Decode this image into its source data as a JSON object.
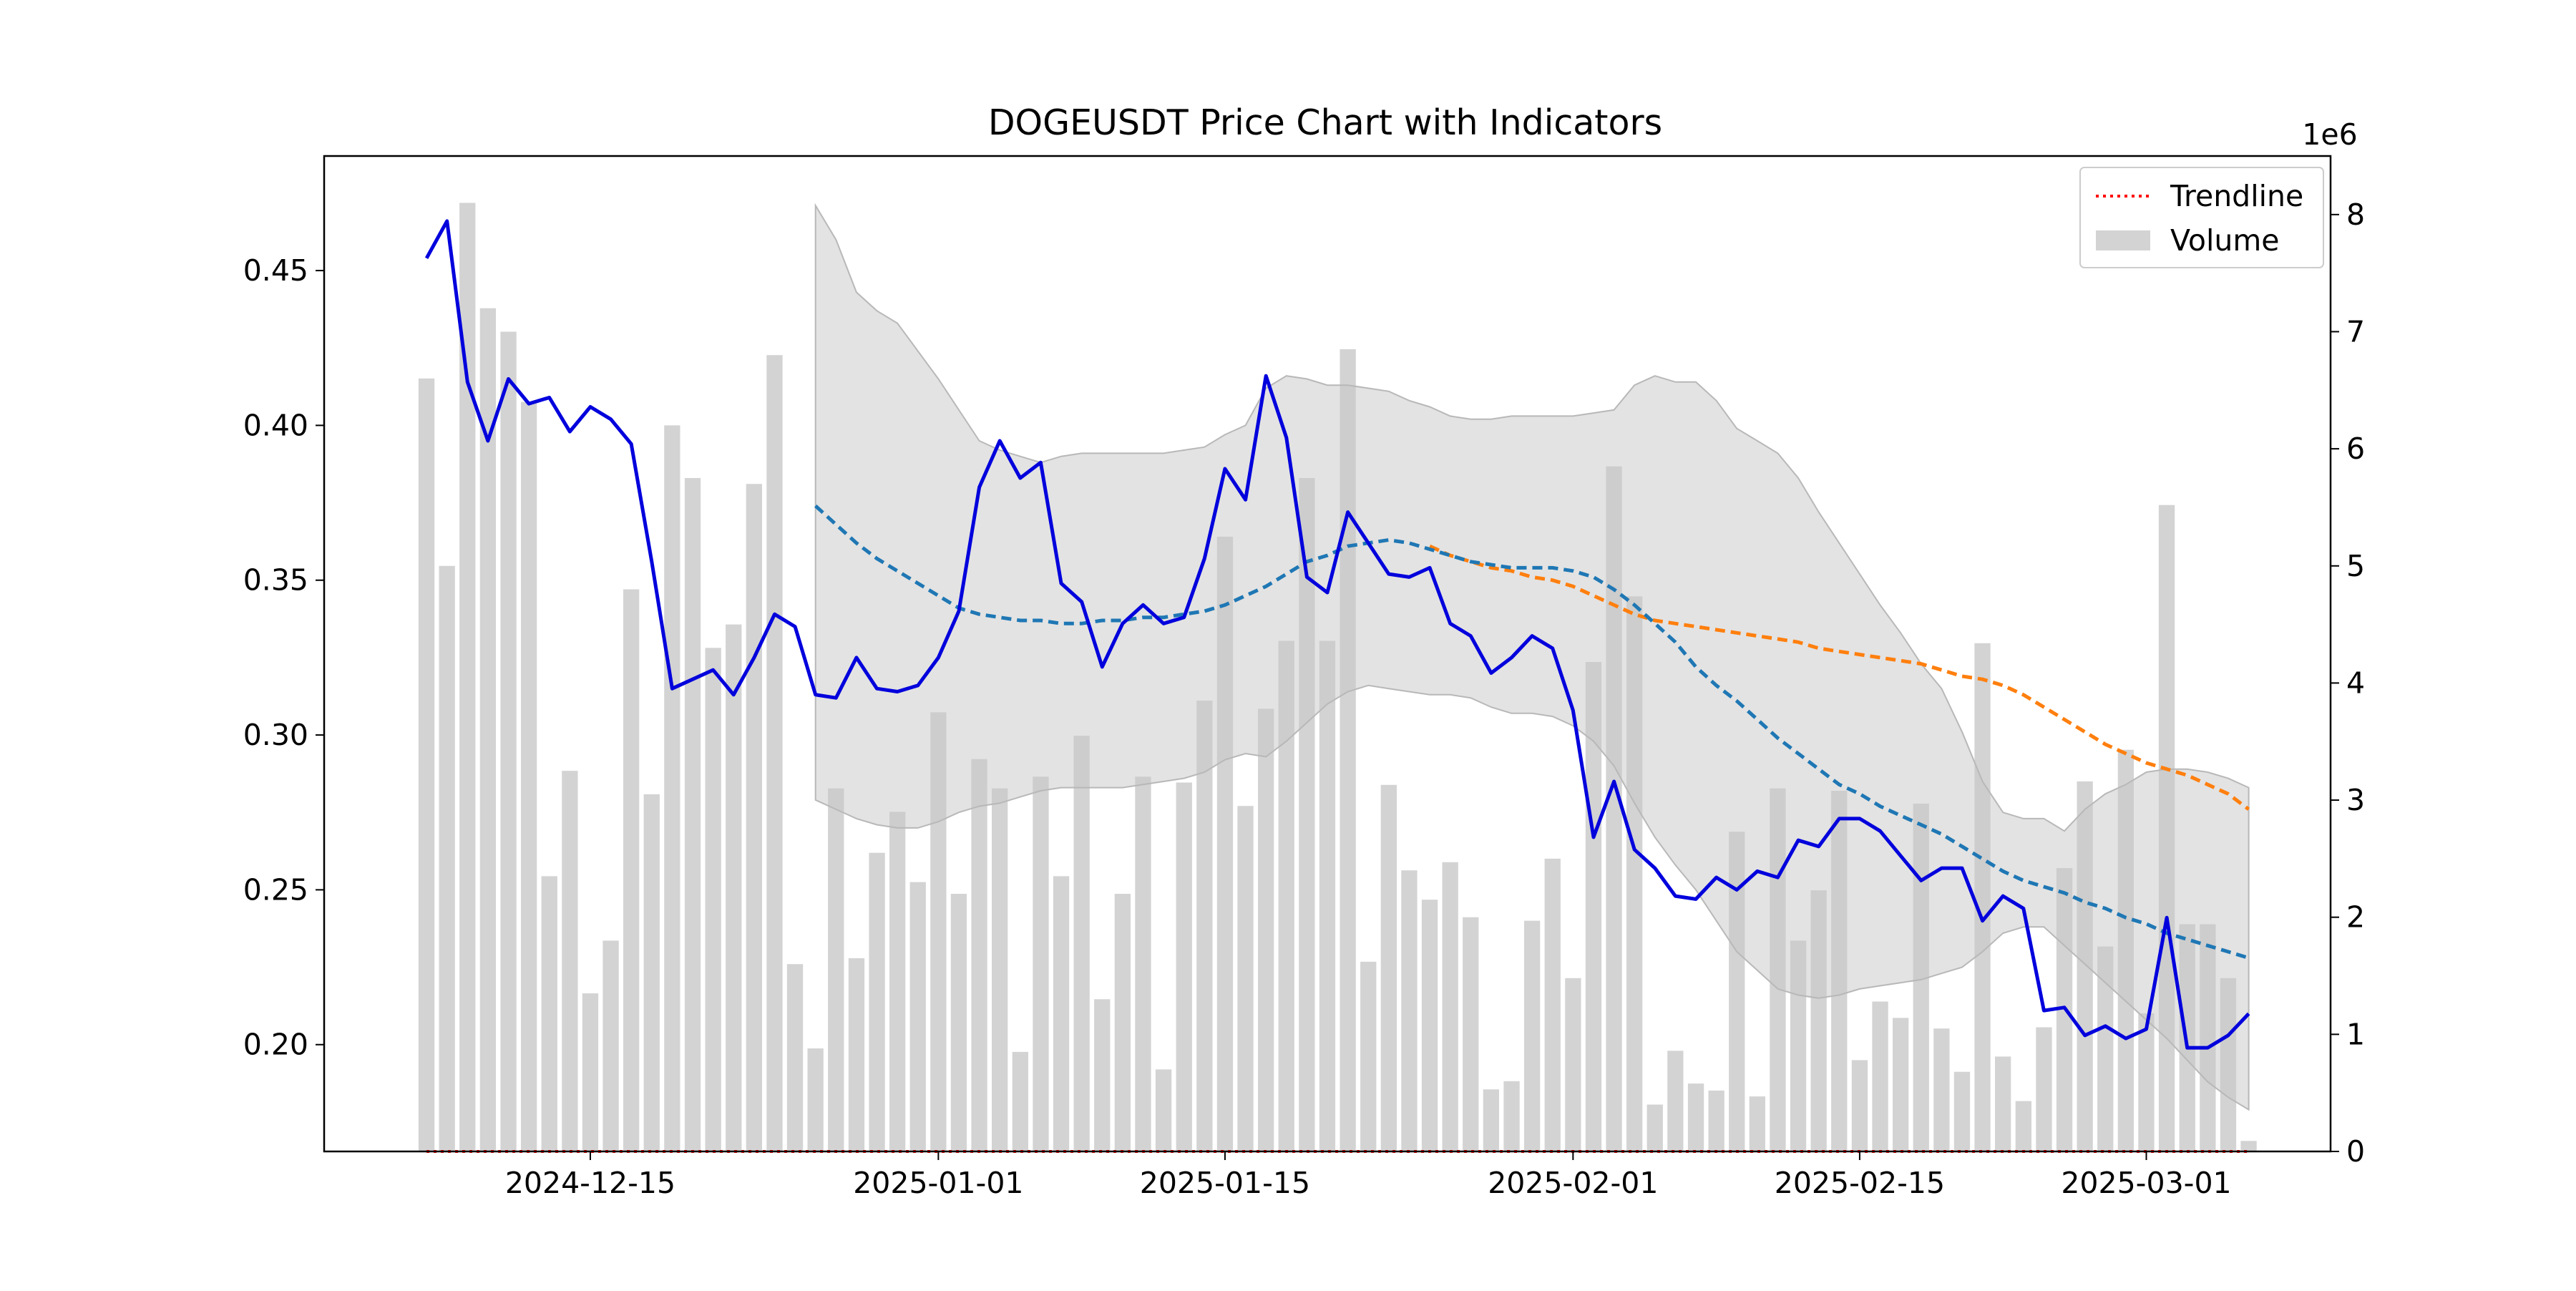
{
  "chart_data": {
    "type": "line",
    "title": "DOGEUSDT Price Chart with Indicators",
    "x_tick_labels": [
      "2024-12-15",
      "2025-01-01",
      "2025-01-15",
      "2025-02-01",
      "2025-02-15",
      "2025-03-01"
    ],
    "xlim": [
      "2024-12-02",
      "2025-03-10"
    ],
    "x_start": "2024-12-07",
    "left_axis": {
      "ylim": [
        0.1655,
        0.487
      ],
      "ticks": [
        "0.20",
        "0.25",
        "0.30",
        "0.35",
        "0.40",
        "0.45"
      ]
    },
    "right_axis": {
      "ylim": [
        0,
        8.5
      ],
      "ticks": [
        "0",
        "1",
        "2",
        "3",
        "4",
        "5",
        "6",
        "7",
        "8"
      ],
      "scale_label": "1e6"
    },
    "legend": {
      "placement": "top-right",
      "entries": [
        {
          "label": "Trendline",
          "style": "dotted",
          "color": "#ff0000"
        },
        {
          "label": "Volume",
          "style": "patch",
          "color": "#d3d3d3"
        }
      ]
    },
    "colors": {
      "price": "#0000dd",
      "ma_short": "#1f77b4",
      "ma_long": "#ff7f0e",
      "band": "#c8c8c8",
      "volume": "#d3d3d3",
      "trendline": "#ff0000"
    },
    "series": [
      {
        "key": "close_price",
        "axis": "left",
        "values": [
          0.454,
          0.466,
          0.414,
          0.395,
          0.415,
          0.407,
          0.409,
          0.398,
          0.406,
          0.402,
          0.394,
          0.356,
          0.315,
          0.318,
          0.321,
          0.313,
          0.325,
          0.339,
          0.335,
          0.313,
          0.312,
          0.325,
          0.315,
          0.314,
          0.316,
          0.325,
          0.34,
          0.38,
          0.395,
          0.383,
          0.388,
          0.349,
          0.343,
          0.322,
          0.336,
          0.342,
          0.336,
          0.338,
          0.357,
          0.386,
          0.376,
          0.416,
          0.396,
          0.351,
          0.346,
          0.372,
          0.362,
          0.352,
          0.351,
          0.354,
          0.336,
          0.332,
          0.32,
          0.325,
          0.332,
          0.328,
          0.308,
          0.267,
          0.285,
          0.263,
          0.257,
          0.248,
          0.247,
          0.254,
          0.25,
          0.256,
          0.254,
          0.266,
          0.264,
          0.273,
          0.273,
          0.269,
          0.261,
          0.253,
          0.257,
          0.257,
          0.24,
          0.248,
          0.244,
          0.211,
          0.212,
          0.203,
          0.206,
          0.202,
          0.205,
          0.241,
          0.199,
          0.199,
          0.203,
          0.21
        ]
      },
      {
        "key": "ma_short",
        "axis": "left",
        "style": "dashed",
        "start_index": 19,
        "values": [
          0.374,
          0.368,
          0.362,
          0.357,
          0.353,
          0.349,
          0.345,
          0.341,
          0.339,
          0.338,
          0.337,
          0.337,
          0.336,
          0.336,
          0.337,
          0.337,
          0.338,
          0.338,
          0.339,
          0.34,
          0.342,
          0.345,
          0.348,
          0.352,
          0.356,
          0.358,
          0.361,
          0.362,
          0.363,
          0.362,
          0.36,
          0.358,
          0.356,
          0.355,
          0.354,
          0.354,
          0.354,
          0.353,
          0.351,
          0.347,
          0.342,
          0.336,
          0.33,
          0.322,
          0.316,
          0.311,
          0.305,
          0.299,
          0.294,
          0.289,
          0.284,
          0.281,
          0.277,
          0.274,
          0.271,
          0.268,
          0.264,
          0.26,
          0.256,
          0.253,
          0.251,
          0.249,
          0.246,
          0.244,
          0.241,
          0.239,
          0.236,
          0.234,
          0.232,
          0.23,
          0.228
        ]
      },
      {
        "key": "ma_long",
        "axis": "left",
        "style": "dashed",
        "start_index": 49,
        "values": [
          0.361,
          0.358,
          0.356,
          0.354,
          0.353,
          0.351,
          0.35,
          0.348,
          0.345,
          0.342,
          0.339,
          0.337,
          0.336,
          0.335,
          0.334,
          0.333,
          0.332,
          0.331,
          0.33,
          0.328,
          0.327,
          0.326,
          0.325,
          0.324,
          0.323,
          0.321,
          0.319,
          0.318,
          0.316,
          0.313,
          0.309,
          0.305,
          0.301,
          0.297,
          0.294,
          0.291,
          0.289,
          0.287,
          0.284,
          0.281,
          0.276
        ]
      },
      {
        "key": "band_upper",
        "axis": "left",
        "start_index": 19,
        "values": [
          0.471,
          0.46,
          0.443,
          0.437,
          0.433,
          0.424,
          0.415,
          0.405,
          0.395,
          0.392,
          0.39,
          0.388,
          0.39,
          0.391,
          0.391,
          0.391,
          0.391,
          0.391,
          0.392,
          0.393,
          0.397,
          0.4,
          0.412,
          0.416,
          0.415,
          0.413,
          0.413,
          0.412,
          0.411,
          0.408,
          0.406,
          0.403,
          0.402,
          0.402,
          0.403,
          0.403,
          0.403,
          0.403,
          0.404,
          0.405,
          0.413,
          0.416,
          0.414,
          0.414,
          0.408,
          0.399,
          0.395,
          0.391,
          0.383,
          0.372,
          0.362,
          0.352,
          0.342,
          0.333,
          0.323,
          0.315,
          0.301,
          0.285,
          0.275,
          0.273,
          0.273,
          0.269,
          0.276,
          0.281,
          0.284,
          0.288,
          0.289,
          0.289,
          0.288,
          0.286,
          0.283
        ]
      },
      {
        "key": "band_lower",
        "axis": "left",
        "start_index": 19,
        "values": [
          0.279,
          0.276,
          0.273,
          0.271,
          0.27,
          0.27,
          0.272,
          0.275,
          0.277,
          0.278,
          0.28,
          0.282,
          0.283,
          0.283,
          0.283,
          0.283,
          0.284,
          0.285,
          0.286,
          0.288,
          0.292,
          0.294,
          0.293,
          0.298,
          0.304,
          0.31,
          0.314,
          0.316,
          0.315,
          0.314,
          0.313,
          0.313,
          0.312,
          0.309,
          0.307,
          0.307,
          0.306,
          0.303,
          0.298,
          0.29,
          0.278,
          0.267,
          0.258,
          0.25,
          0.24,
          0.23,
          0.224,
          0.218,
          0.216,
          0.215,
          0.216,
          0.218,
          0.219,
          0.22,
          0.221,
          0.223,
          0.225,
          0.23,
          0.236,
          0.238,
          0.238,
          0.232,
          0.226,
          0.22,
          0.214,
          0.208,
          0.202,
          0.195,
          0.188,
          0.183,
          0.179
        ]
      },
      {
        "key": "volume",
        "axis": "right",
        "type": "bar",
        "values": [
          6.6,
          5.0,
          8.1,
          7.2,
          7.0,
          6.4,
          2.35,
          3.25,
          1.35,
          1.8,
          4.8,
          3.05,
          6.2,
          5.75,
          4.3,
          4.5,
          5.7,
          6.8,
          1.6,
          0.88,
          3.1,
          1.65,
          2.55,
          2.9,
          2.3,
          3.75,
          2.2,
          3.35,
          3.1,
          0.85,
          3.2,
          2.35,
          3.55,
          1.3,
          2.2,
          3.2,
          0.7,
          3.15,
          3.85,
          5.25,
          2.95,
          3.78,
          4.36,
          5.75,
          4.36,
          6.85,
          1.62,
          3.13,
          2.4,
          2.15,
          2.47,
          2.0,
          0.53,
          0.6,
          1.97,
          2.5,
          1.48,
          4.18,
          5.85,
          4.74,
          0.4,
          0.86,
          0.58,
          0.52,
          2.73,
          0.47,
          3.1,
          1.8,
          2.23,
          3.08,
          0.78,
          1.28,
          1.14,
          2.97,
          1.05,
          0.68,
          4.34,
          0.81,
          0.43,
          1.06,
          2.42,
          3.16,
          1.75,
          3.43,
          1.18,
          5.52,
          1.94,
          1.94,
          1.48,
          0.09
        ]
      },
      {
        "key": "trendline",
        "axis": "right",
        "style": "dotted",
        "values": [
          0,
          0
        ]
      }
    ]
  }
}
